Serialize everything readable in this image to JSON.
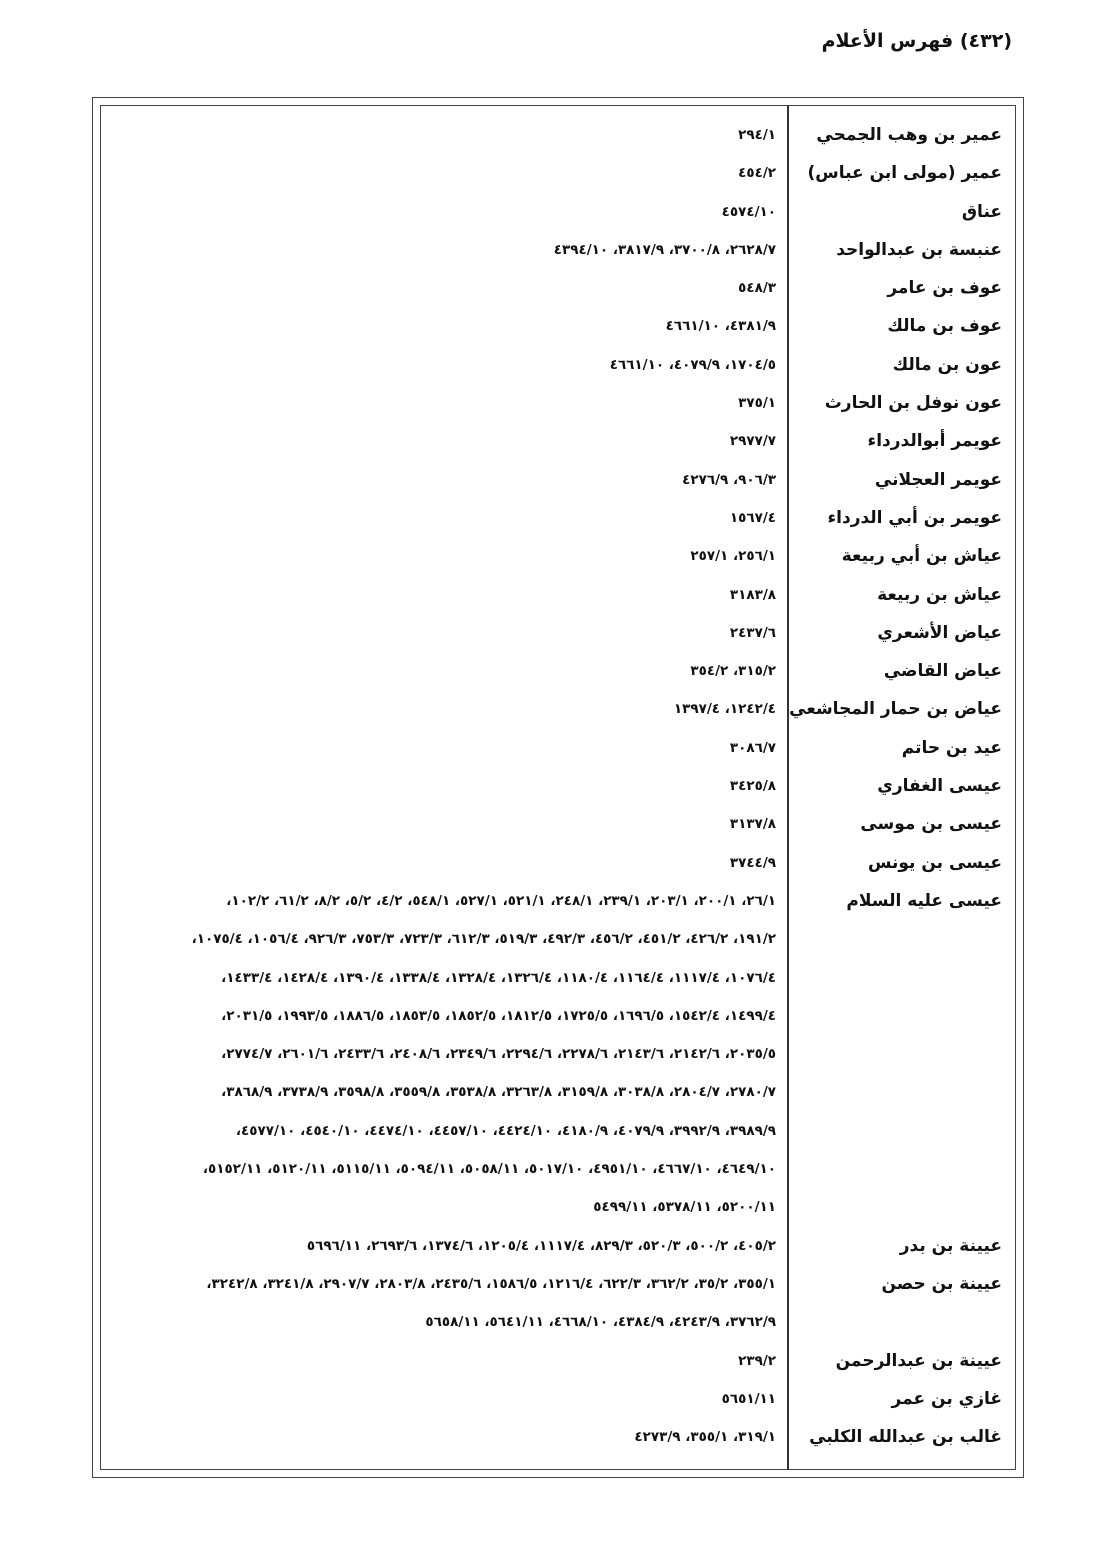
{
  "header": {
    "title": "(٤٣٢) فهرس الأعلام"
  },
  "entries": [
    {
      "name": "عمير بن وهب الجمحي",
      "refs": [
        "٢٩٤/١"
      ]
    },
    {
      "name": "عمير (مولى ابن عباس)",
      "refs": [
        "٤٥٤/٢"
      ]
    },
    {
      "name": "عناق",
      "refs": [
        "٤٥٧٤/١٠"
      ]
    },
    {
      "name": "عنبسة بن عبدالواحد",
      "refs": [
        "٤٣٩٤/١٠ ،٣٨١٧/٩ ،٣٧٠٠/٨ ،٢٦٢٨/٧"
      ]
    },
    {
      "name": "عوف بن عامر",
      "refs": [
        "٥٤٨/٣"
      ]
    },
    {
      "name": "عوف بن مالك",
      "refs": [
        "٤٦٦١/١٠ ،٤٣٨١/٩"
      ]
    },
    {
      "name": "عون بن مالك",
      "refs": [
        "٤٦٦١/١٠ ،٤٠٧٩/٩ ،١٧٠٤/٥"
      ]
    },
    {
      "name": "عون نوفل بن الحارث",
      "refs": [
        "٣٧٥/١"
      ]
    },
    {
      "name": "عويمر أبوالدرداء",
      "refs": [
        "٢٩٧٧/٧"
      ]
    },
    {
      "name": "عويمر العجلاني",
      "refs": [
        "٤٢٧٦/٩ ،٩٠٦/٣"
      ]
    },
    {
      "name": "عويمر بن أبي الدرداء",
      "refs": [
        "١٥٦٧/٤"
      ]
    },
    {
      "name": "عياش بن أبي ربيعة",
      "refs": [
        "٢٥٧/١ ،٢٥٦/١"
      ]
    },
    {
      "name": "عياش بن ربيعة",
      "refs": [
        "٣١٨٣/٨"
      ]
    },
    {
      "name": "عياض الأشعري",
      "refs": [
        "٢٤٣٧/٦"
      ]
    },
    {
      "name": "عياض القاضي",
      "refs": [
        "٣٥٤/٢ ،٣١٥/٢"
      ]
    },
    {
      "name": "عياض بن حمار المجاشعي",
      "refs": [
        "١٣٩٧/٤ ،١٢٤٢/٤"
      ]
    },
    {
      "name": "عيد بن حاتم",
      "refs": [
        "٣٠٨٦/٧"
      ]
    },
    {
      "name": "عيسى الغفاري",
      "refs": [
        "٣٤٢٥/٨"
      ]
    },
    {
      "name": "عيسى بن موسى",
      "refs": [
        "٣١٣٧/٨"
      ]
    },
    {
      "name": "عيسى بن يونس",
      "refs": [
        "٣٧٤٤/٩"
      ]
    },
    {
      "name": "عيسى عليه السلام",
      "refs": [
        "،١٠٢/٢ ،٦١/٢ ،٨/٢ ،٥/٢ ،٤/٢ ،٥٤٨/١ ،٥٢٧/١ ،٥٢١/١ ،٢٤٨/١ ،٢٣٩/١ ،٢٠٣/١ ،٢٠٠/١ ،٢٦/١",
        "،١٠٧٥/٤ ،١٠٥٦/٤ ،٩٢٦/٣ ،٧٥٣/٣ ،٧٢٣/٣ ،٦١٢/٣ ،٥١٩/٣ ،٤٩٢/٣ ،٤٥٦/٢ ،٤٥١/٢ ،٤٢٦/٢ ،١٩١/٢",
        "،١٤٣٣/٤ ،١٤٢٨/٤ ،١٣٩٠/٤ ،١٣٣٨/٤ ،١٣٢٨/٤ ،١٣٢٦/٤ ،١١٨٠/٤ ،١١٦٤/٤ ،١١١٧/٤ ،١٠٧٦/٤",
        "،٢٠٣١/٥ ،١٩٩٣/٥ ،١٨٨٦/٥ ،١٨٥٣/٥ ،١٨٥٢/٥ ،١٨١٢/٥ ،١٧٢٥/٥ ،١٦٩٦/٥ ،١٥٤٢/٤ ،١٤٩٩/٤",
        "،٢٧٧٤/٧ ،٢٦٠١/٦ ،٢٤٣٣/٦ ،٢٤٠٨/٦ ،٢٣٤٩/٦ ،٢٢٩٤/٦ ،٢٢٧٨/٦ ،٢١٤٣/٦ ،٢١٤٢/٦ ،٢٠٣٥/٥",
        "،٣٨٦٨/٩ ،٣٧٣٨/٩ ،٣٥٩٨/٨ ،٣٥٥٩/٨ ،٣٥٣٨/٨ ،٣٢٦٣/٨ ،٣١٥٩/٨ ،٣٠٣٨/٨ ،٢٨٠٤/٧ ،٢٧٨٠/٧",
        "،٤٥٧٧/١٠ ،٤٥٤٠/١٠ ،٤٤٧٤/١٠ ،٤٤٥٧/١٠ ،٤٤٢٤/١٠ ،٤١٨٠/٩ ،٤٠٧٩/٩ ،٣٩٩٢/٩ ،٣٩٨٩/٩",
        "،٥١٥٢/١١ ،٥١٢٠/١١ ،٥١١٥/١١ ،٥٠٩٤/١١ ،٥٠٥٨/١١ ،٥٠١٧/١٠ ،٤٩٥١/١٠ ،٤٦٦٧/١٠ ،٤٦٤٩/١٠",
        "٥٤٩٩/١١ ،٥٣٧٨/١١ ،٥٢٠٠/١١"
      ]
    },
    {
      "name": "عيينة بن بدر",
      "refs": [
        "٥٦٩٦/١١ ،٢٦٩٣/٦ ،١٣٧٤/٦ ،١٢٠٥/٤ ،١١١٧/٤ ،٨٢٩/٣ ،٥٢٠/٣ ،٥٠٠/٢ ،٤٠٥/٢"
      ]
    },
    {
      "name": "عيينة بن حصن",
      "refs": [
        "،٣٢٤٢/٨ ،٣٢٤١/٨ ،٢٩٠٧/٧ ،٢٨٠٣/٨ ،٢٤٣٥/٦ ،١٥٨٦/٥ ،١٢١٦/٤ ،٦٢٢/٣ ،٣٦٢/٢ ،٣٥/٢ ،٣٥٥/١",
        "٥٦٥٨/١١ ،٥٦٤١/١١ ،٤٦٦٨/١٠ ،٤٣٨٤/٩ ،٤٢٤٣/٩ ،٣٧٦٢/٩"
      ]
    },
    {
      "name": "عيينة بن عبدالرحمن",
      "refs": [
        "٢٣٩/٢"
      ]
    },
    {
      "name": "غازي بن عمر",
      "refs": [
        "٥٦٥١/١١"
      ]
    },
    {
      "name": "غالب بن عبدالله الكلبي",
      "refs": [
        "٤٢٧٣/٩ ،٣٥٥/١ ،٣١٩/١"
      ]
    }
  ]
}
